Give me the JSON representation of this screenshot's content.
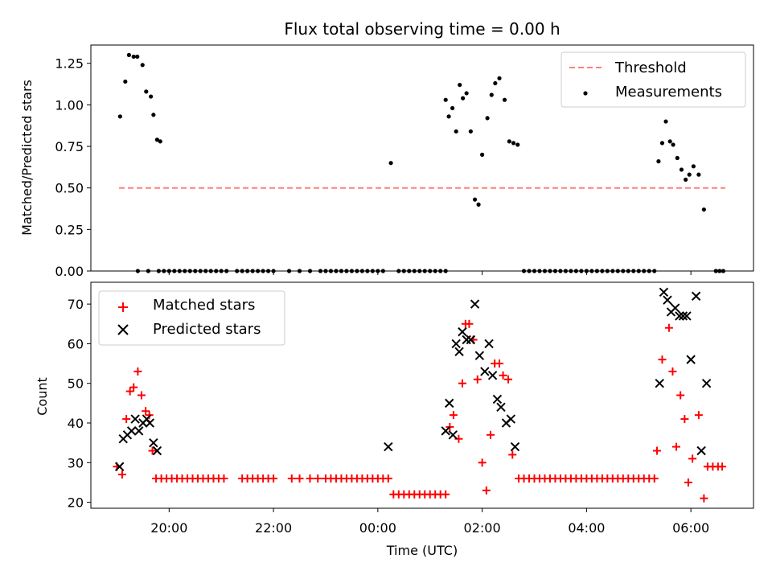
{
  "chart_data": [
    {
      "type": "scatter",
      "title": "Flux total observing time = 0.00 h",
      "xlabel": "",
      "ylabel": "Matched/Predicted stars",
      "ylim": [
        0,
        1.36
      ],
      "yticks": [
        "0.00",
        "0.25",
        "0.50",
        "0.75",
        "1.00",
        "1.25"
      ],
      "ytick_values": [
        0,
        0.25,
        0.5,
        0.75,
        1.0,
        1.25
      ],
      "legend_position": "top-right",
      "threshold": {
        "label": "Threshold",
        "y": 0.5,
        "x": [
          19.04,
          30.66
        ],
        "color": "#ff7f7f"
      },
      "series": [
        {
          "name": "Measurements",
          "color": "#000000",
          "x": [
            19.06,
            19.16,
            19.23,
            19.32,
            19.39,
            19.49,
            19.56,
            19.65,
            19.7,
            19.77,
            19.83,
            19.4,
            19.6,
            19.8,
            19.9,
            20.0,
            20.1,
            20.2,
            20.3,
            20.4,
            20.5,
            20.6,
            20.7,
            20.8,
            20.9,
            21.0,
            21.1,
            21.3,
            21.4,
            21.5,
            21.6,
            21.7,
            21.8,
            21.9,
            22.0,
            22.3,
            22.5,
            22.7,
            22.9,
            23.0,
            23.1,
            23.2,
            23.3,
            23.4,
            23.5,
            23.6,
            23.7,
            23.8,
            23.9,
            24.0,
            24.1,
            24.25,
            24.4,
            24.5,
            24.6,
            24.7,
            24.8,
            24.9,
            25.0,
            25.1,
            25.2,
            25.3,
            25.3,
            25.36,
            25.43,
            25.5,
            25.57,
            25.63,
            25.7,
            25.78,
            25.86,
            25.93,
            26.0,
            26.1,
            26.18,
            26.25,
            26.33,
            26.43,
            26.52,
            26.6,
            26.68,
            26.8,
            26.9,
            27.0,
            27.1,
            27.2,
            27.3,
            27.4,
            27.5,
            27.6,
            27.7,
            27.8,
            27.9,
            28.0,
            28.1,
            28.2,
            28.3,
            28.4,
            28.5,
            28.6,
            28.7,
            28.8,
            28.9,
            29.0,
            29.1,
            29.2,
            29.3,
            29.38,
            29.45,
            29.52,
            29.6,
            29.66,
            29.74,
            29.82,
            29.9,
            29.97,
            30.05,
            30.15,
            30.25,
            30.48,
            30.55,
            30.62
          ],
          "y": [
            0.93,
            1.14,
            1.3,
            1.29,
            1.29,
            1.24,
            1.08,
            1.05,
            0.94,
            0.79,
            0.78,
            0,
            0,
            0,
            0,
            0,
            0,
            0,
            0,
            0,
            0,
            0,
            0,
            0,
            0,
            0,
            0,
            0,
            0,
            0,
            0,
            0,
            0,
            0,
            0,
            0,
            0,
            0,
            0,
            0,
            0,
            0,
            0,
            0,
            0,
            0,
            0,
            0,
            0,
            0,
            0,
            0.65,
            0,
            0,
            0,
            0,
            0,
            0,
            0,
            0,
            0,
            0,
            1.03,
            0.93,
            0.98,
            0.84,
            1.12,
            1.04,
            1.07,
            0.84,
            0.43,
            0.4,
            0.7,
            0.92,
            1.06,
            1.13,
            1.16,
            1.03,
            0.78,
            0.77,
            0.76,
            0,
            0,
            0,
            0,
            0,
            0,
            0,
            0,
            0,
            0,
            0,
            0,
            0,
            0,
            0,
            0,
            0,
            0,
            0,
            0,
            0,
            0,
            0,
            0,
            0,
            0,
            0.66,
            0.77,
            0.9,
            0.78,
            0.76,
            0.68,
            0.61,
            0.55,
            0.58,
            0.63,
            0.58,
            0.37,
            0,
            0,
            0
          ]
        }
      ]
    },
    {
      "type": "scatter",
      "title": "",
      "xlabel": "Time (UTC)",
      "ylabel": "Count",
      "ylim": [
        18.5,
        75.5
      ],
      "xlim": [
        18.5,
        31.2
      ],
      "xticks": [
        "20:00",
        "22:00",
        "00:00",
        "02:00",
        "04:00",
        "06:00"
      ],
      "xtick_values": [
        20,
        22,
        24,
        26,
        28,
        30
      ],
      "yticks": [
        "20",
        "30",
        "40",
        "50",
        "60",
        "70"
      ],
      "ytick_values": [
        20,
        30,
        40,
        50,
        60,
        70
      ],
      "legend_position": "top-left",
      "series": [
        {
          "name": "Matched stars",
          "color": "#ff0000",
          "marker": "plus",
          "x": [
            19.0,
            19.1,
            19.18,
            19.25,
            19.32,
            19.4,
            19.47,
            19.55,
            19.62,
            19.68,
            19.75,
            19.85,
            19.95,
            20.05,
            20.15,
            20.25,
            20.35,
            20.45,
            20.55,
            20.65,
            20.75,
            20.85,
            20.95,
            21.05,
            21.4,
            21.5,
            21.6,
            21.7,
            21.8,
            21.9,
            22.0,
            22.35,
            22.5,
            22.7,
            22.85,
            23.0,
            23.1,
            23.2,
            23.3,
            23.4,
            23.5,
            23.6,
            23.7,
            23.8,
            23.9,
            24.0,
            24.1,
            24.2,
            24.3,
            24.4,
            24.5,
            24.6,
            24.7,
            24.8,
            24.9,
            25.0,
            25.1,
            25.2,
            25.3,
            25.38,
            25.45,
            25.55,
            25.62,
            25.68,
            25.75,
            25.83,
            25.91,
            26.0,
            26.08,
            26.16,
            26.24,
            26.33,
            26.4,
            26.5,
            26.58,
            26.7,
            26.8,
            26.9,
            27.0,
            27.1,
            27.2,
            27.3,
            27.4,
            27.5,
            27.6,
            27.7,
            27.8,
            27.9,
            28.0,
            28.1,
            28.2,
            28.3,
            28.4,
            28.5,
            28.6,
            28.7,
            28.8,
            28.9,
            29.0,
            29.1,
            29.2,
            29.3,
            29.35,
            29.45,
            29.58,
            29.65,
            29.72,
            29.8,
            29.88,
            29.95,
            30.03,
            30.15,
            30.25,
            30.32,
            30.42,
            30.52,
            30.6
          ],
          "y": [
            29,
            27,
            41,
            48,
            49,
            53,
            47,
            43,
            42,
            33,
            26,
            26,
            26,
            26,
            26,
            26,
            26,
            26,
            26,
            26,
            26,
            26,
            26,
            26,
            26,
            26,
            26,
            26,
            26,
            26,
            26,
            26,
            26,
            26,
            26,
            26,
            26,
            26,
            26,
            26,
            26,
            26,
            26,
            26,
            26,
            26,
            26,
            26,
            22,
            22,
            22,
            22,
            22,
            22,
            22,
            22,
            22,
            22,
            22,
            39,
            42,
            36,
            50,
            65,
            65,
            61,
            51,
            30,
            23,
            37,
            55,
            55,
            52,
            51,
            32,
            26,
            26,
            26,
            26,
            26,
            26,
            26,
            26,
            26,
            26,
            26,
            26,
            26,
            26,
            26,
            26,
            26,
            26,
            26,
            26,
            26,
            26,
            26,
            26,
            26,
            26,
            26,
            33,
            56,
            64,
            53,
            34,
            47,
            41,
            25,
            31,
            42,
            21,
            29,
            29,
            29,
            29
          ]
        },
        {
          "name": "Predicted stars",
          "color": "#000000",
          "marker": "x",
          "x": [
            19.05,
            19.12,
            19.2,
            19.28,
            19.35,
            19.42,
            19.5,
            19.57,
            19.63,
            19.7,
            19.77,
            24.2,
            25.3,
            25.37,
            25.44,
            25.5,
            25.56,
            25.62,
            25.7,
            25.78,
            25.86,
            25.95,
            26.05,
            26.13,
            26.2,
            26.29,
            26.36,
            26.46,
            26.55,
            26.63,
            29.4,
            29.48,
            29.55,
            29.62,
            29.7,
            29.78,
            29.85,
            29.92,
            30.0,
            30.1,
            30.2,
            30.3
          ],
          "y": [
            29,
            36,
            37,
            38,
            41,
            38,
            40,
            41,
            40,
            35,
            33,
            34,
            38,
            45,
            37,
            60,
            58,
            63,
            61,
            61,
            70,
            57,
            53,
            60,
            52,
            46,
            44,
            40,
            41,
            34,
            50,
            73,
            71,
            68,
            69,
            67,
            67,
            67,
            56,
            72,
            33,
            50
          ]
        }
      ]
    }
  ]
}
